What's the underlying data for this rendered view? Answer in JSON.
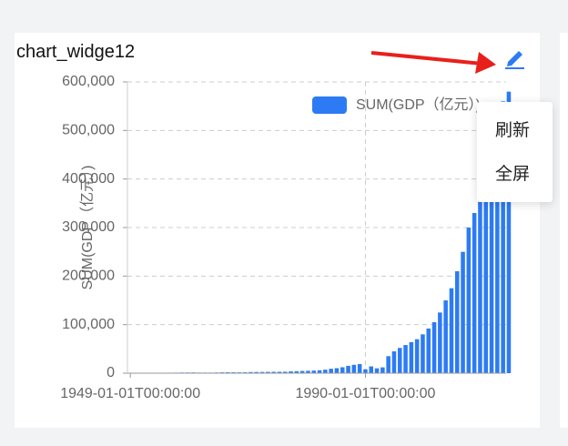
{
  "widget": {
    "title": "chart_widge12"
  },
  "menu": [
    "刷新",
    "全屏"
  ],
  "chart_data": {
    "type": "bar",
    "y_label": "SUM(GDP（亿元）)",
    "categories": [
      "1949-01-01T00:00:00",
      null,
      null,
      null,
      null,
      null,
      null,
      null,
      null,
      null,
      null,
      null,
      null,
      null,
      null,
      null,
      null,
      null,
      null,
      null,
      null,
      null,
      null,
      null,
      null,
      null,
      null,
      null,
      null,
      null,
      null,
      null,
      null,
      null,
      null,
      null,
      null,
      null,
      null,
      null,
      null,
      "1990-01-01T00:00:00",
      null,
      null,
      null,
      null,
      null,
      null,
      null,
      null,
      null,
      null,
      null,
      null,
      null,
      null,
      null,
      null,
      null,
      null,
      null,
      null,
      null,
      null,
      null,
      null,
      null
    ],
    "series": [
      {
        "name": "SUM(GDP（亿元）)",
        "color": "#2d7bf4",
        "values": [
          400,
          500,
          600,
          700,
          800,
          900,
          1000,
          1000,
          1100,
          1300,
          1400,
          1500,
          1200,
          1200,
          1200,
          1400,
          1700,
          1900,
          1800,
          1700,
          1800,
          2300,
          2400,
          2500,
          2700,
          2800,
          2900,
          3000,
          3700,
          4100,
          4600,
          4900,
          5300,
          6000,
          7200,
          9100,
          10300,
          12200,
          15100,
          17200,
          18700,
          8000,
          14000,
          10000,
          12000,
          35000,
          45000,
          52000,
          58000,
          64000,
          70000,
          80000,
          92000,
          105000,
          125000,
          150000,
          175000,
          210000,
          250000,
          300000,
          330000,
          360000,
          380000,
          400000,
          500000,
          560000,
          580000
        ]
      }
    ],
    "ylim": [
      0,
      600000
    ],
    "yticks": [
      0,
      {
        "value": 100000,
        "label": "100,000"
      },
      {
        "value": 200000,
        "label": "200,000"
      },
      {
        "value": 300000,
        "label": "300,000"
      },
      {
        "value": 400000,
        "label": "400,000"
      },
      {
        "value": 500000,
        "label": "500,000"
      },
      {
        "value": 600000,
        "label": "600,000"
      }
    ],
    "grid": true
  }
}
